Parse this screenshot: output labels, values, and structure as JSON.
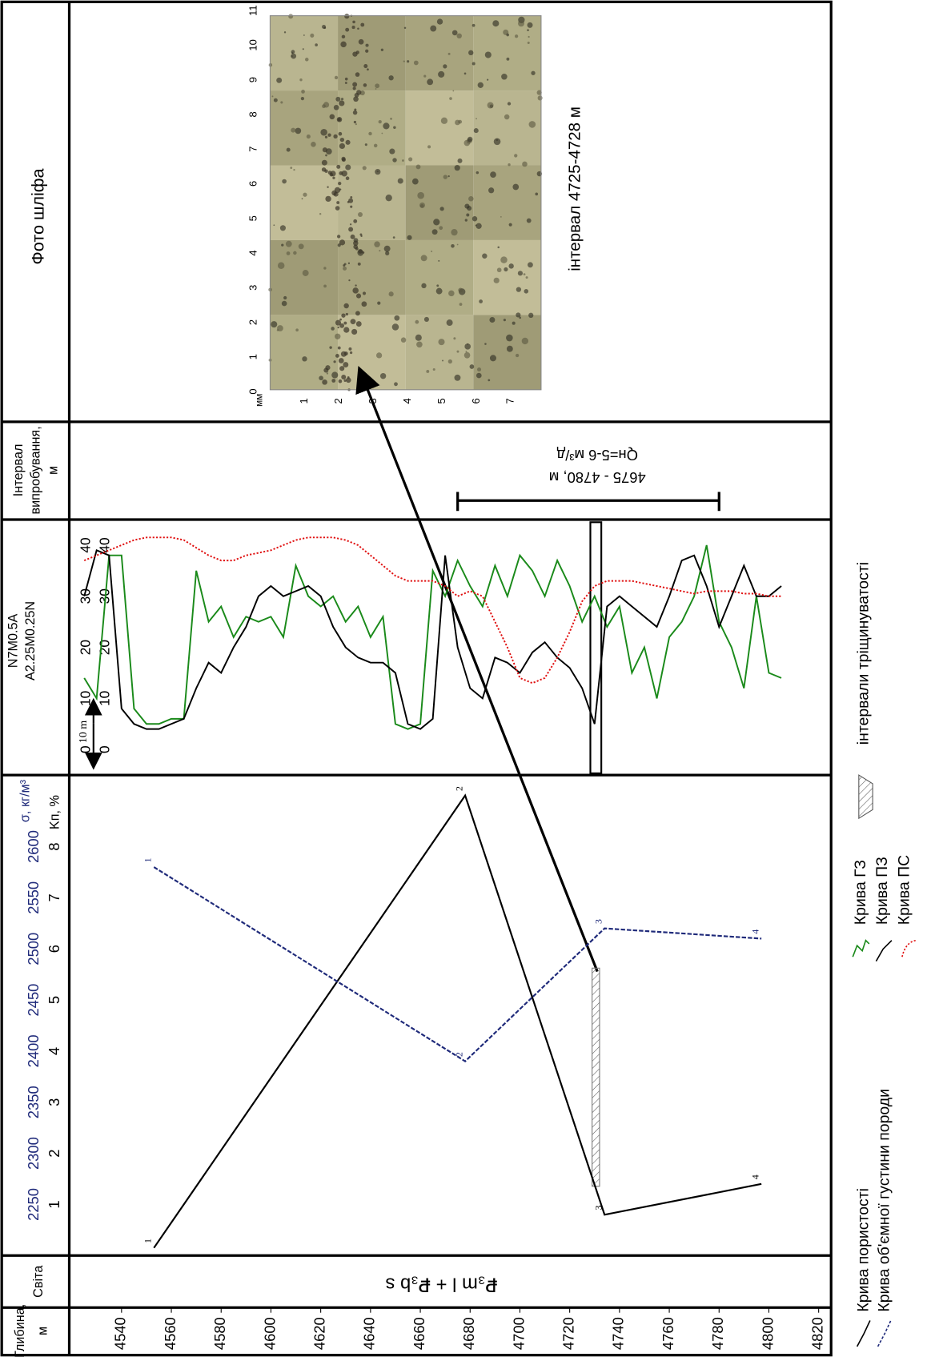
{
  "headers": {
    "photo": "Фото шліфа",
    "interval": [
      "Інтервал",
      "випробування,",
      "м"
    ],
    "depth": [
      "Глибина,",
      "м"
    ],
    "svita": "Світа"
  },
  "svita_value": "₽₃m l + ₽₃b s",
  "interval": {
    "range": [
      4675,
      4780
    ],
    "label": "4675 - 4780, м",
    "flow": "Qн=5-6 м³/д"
  },
  "photo": {
    "caption": "інтервал 4725-4728 м",
    "scale_long": [
      0,
      1,
      2,
      3,
      4,
      5,
      6,
      7,
      8,
      9,
      10,
      11
    ],
    "scale_short": [
      1,
      2,
      3,
      4,
      5,
      6,
      7
    ],
    "unit": "мм"
  },
  "fracture_interval": {
    "name": "інтервали тріщинуватості",
    "range": [
      4729,
      4732
    ]
  },
  "chart_data": [
    {
      "type": "line",
      "xlim": [
        4519,
        4825
      ],
      "xticks": [
        4540,
        4560,
        4580,
        4600,
        4620,
        4640,
        4660,
        4680,
        4700,
        4720,
        4740,
        4760,
        4780,
        4800,
        4820
      ],
      "ylim": [
        0,
        9.4
      ],
      "yticks": [
        1,
        2,
        3,
        4,
        5,
        6,
        7,
        8
      ],
      "y2lim": [
        2200,
        2670
      ],
      "y2ticks": [
        2250,
        2300,
        2350,
        2400,
        2450,
        2500,
        2550,
        2600
      ],
      "ylabel": "Kп, %",
      "y2label": "σ, кг/м³",
      "x": [
        4553,
        4678,
        4734,
        4797
      ],
      "series": [
        {
          "name": "Крива пористості",
          "color": "#000000",
          "values": [
            0.15,
            9.0,
            0.8,
            1.4
          ],
          "point_labels": [
            "1",
            "2",
            "3",
            "4"
          ]
        },
        {
          "name": "Крива об'ємної густини породи",
          "color": "#1f2a7a",
          "dash": true,
          "axis": "y2",
          "values": [
            2580,
            2390,
            2520,
            2510
          ],
          "point_labels": [
            "1",
            "2",
            "3",
            "4"
          ]
        }
      ]
    },
    {
      "type": "line",
      "xlim": [
        4519,
        4825
      ],
      "ylim": [
        -5,
        45
      ],
      "yticks": [
        0,
        10,
        20,
        30,
        40
      ],
      "y2lim": [
        -5,
        45
      ],
      "y2ticks": [
        0,
        10,
        20,
        30,
        40
      ],
      "ylabel": "N7M0.5A",
      "y2label": "A2.25M0.25N",
      "annotation": "10 m",
      "x": [
        4525,
        4530,
        4535,
        4540,
        4545,
        4550,
        4555,
        4560,
        4565,
        4570,
        4575,
        4580,
        4585,
        4590,
        4595,
        4600,
        4605,
        4610,
        4615,
        4620,
        4625,
        4630,
        4635,
        4640,
        4645,
        4650,
        4655,
        4660,
        4665,
        4670,
        4675,
        4680,
        4685,
        4690,
        4695,
        4700,
        4705,
        4710,
        4715,
        4720,
        4725,
        4730,
        4735,
        4740,
        4745,
        4750,
        4755,
        4760,
        4765,
        4770,
        4775,
        4780,
        4785,
        4790,
        4795,
        4800,
        4805
      ],
      "series": [
        {
          "name": "Крива ГЗ",
          "color": "#1a8a1a",
          "values": [
            14,
            10,
            38,
            38,
            8,
            5,
            5,
            6,
            6,
            35,
            25,
            28,
            22,
            26,
            25,
            26,
            22,
            36,
            30,
            28,
            30,
            25,
            28,
            22,
            26,
            5,
            4,
            5,
            35,
            30,
            37,
            32,
            28,
            36,
            30,
            38,
            35,
            30,
            37,
            32,
            25,
            30,
            24,
            28,
            15,
            20,
            10,
            22,
            25,
            30,
            40,
            25,
            20,
            12,
            30,
            15,
            14
          ]
        },
        {
          "name": "Крива ПЗ",
          "color": "#000000",
          "axis": "y2",
          "values": [
            30,
            39,
            38,
            8,
            5,
            4,
            4,
            5,
            6,
            12,
            17,
            15,
            20,
            24,
            30,
            32,
            30,
            31,
            32,
            30,
            24,
            20,
            18,
            17,
            17,
            15,
            5,
            4,
            6,
            38,
            20,
            12,
            10,
            18,
            17,
            15,
            19,
            21,
            18,
            16,
            12,
            5,
            28,
            30,
            28,
            26,
            24,
            30,
            37,
            38,
            32,
            24,
            30,
            36,
            30,
            30,
            32
          ]
        },
        {
          "name": "Крива ПС",
          "color": "#e01010",
          "dotted": true,
          "values": [
            37,
            38,
            39,
            40,
            41,
            41.5,
            41.5,
            41.5,
            41,
            39.5,
            38,
            37,
            37,
            38,
            38.5,
            39,
            40,
            41,
            41.5,
            41.5,
            41.5,
            41,
            40,
            38,
            36,
            34,
            33,
            33,
            33,
            32,
            30,
            31,
            30,
            25,
            20,
            14,
            13,
            14,
            18,
            23,
            29,
            32,
            33,
            33,
            33,
            32.5,
            32,
            31.5,
            31,
            30.5,
            31,
            31,
            31,
            30.5,
            30.5,
            30,
            30
          ]
        }
      ]
    }
  ]
}
